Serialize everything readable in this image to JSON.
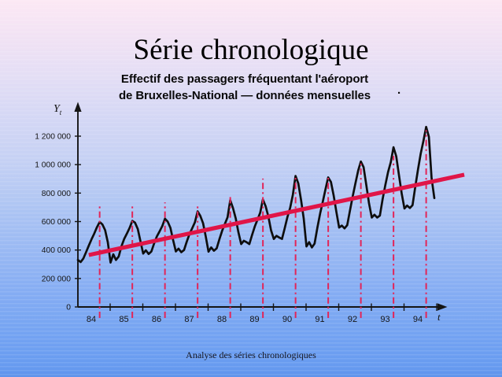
{
  "slide": {
    "title": "Série chronologique",
    "subtitle_line1": "Effectif des passagers fréquentant l'aéroport",
    "subtitle_line2": "de Bruxelles-National — données mensuelles",
    "stray_mark": ".",
    "footer": "Analyse des séries chronologiques"
  },
  "colors": {
    "background_top": "#fce8f4",
    "background_bottom": "#679bf0",
    "curve": "#0e0e0e",
    "trend_line": "#e01548",
    "peak_marker": "#e22558",
    "axis": "#151515"
  },
  "chart_data": {
    "type": "line",
    "title": "Effectif des passagers fréquentant l'aéroport de Bruxelles-National — données mensuelles",
    "unit": "passengers per month",
    "values_scale": 1000,
    "grid": "off",
    "y_axis": {
      "symbol": "Y",
      "symbol_sub": "t",
      "tick_labels": [
        "1 200 000",
        "1 000 000",
        "800 000",
        "600 000",
        "400 000",
        "200 000",
        "0"
      ],
      "tick_values_thousands": [
        1200,
        1000,
        800,
        600,
        400,
        200,
        0
      ],
      "range_thousands": [
        0,
        1300
      ]
    },
    "x_axis": {
      "symbol": "t",
      "year_labels": [
        "84",
        "85",
        "86",
        "87",
        "88",
        "89",
        "90",
        "91",
        "92",
        "93",
        "94"
      ]
    },
    "series_start": "Nov 1983",
    "frequency": "monthly",
    "monthly_values_thousands": [
      330,
      316,
      340,
      385,
      430,
      475,
      515,
      560,
      597,
      580,
      540,
      455,
      312,
      370,
      330,
      355,
      425,
      478,
      515,
      555,
      605,
      592,
      548,
      462,
      375,
      398,
      372,
      390,
      445,
      495,
      530,
      568,
      620,
      600,
      556,
      470,
      390,
      410,
      385,
      400,
      458,
      512,
      552,
      595,
      672,
      640,
      588,
      495,
      388,
      418,
      395,
      412,
      475,
      535,
      582,
      630,
      750,
      695,
      622,
      525,
      442,
      465,
      455,
      442,
      505,
      565,
      612,
      662,
      755,
      708,
      635,
      538,
      478,
      500,
      488,
      478,
      552,
      632,
      695,
      788,
      920,
      868,
      752,
      622,
      425,
      455,
      418,
      445,
      555,
      655,
      738,
      828,
      910,
      878,
      782,
      668,
      558,
      572,
      552,
      575,
      678,
      778,
      868,
      958,
      1022,
      982,
      858,
      728,
      628,
      648,
      628,
      642,
      758,
      858,
      948,
      1018,
      1122,
      1058,
      928,
      798,
      692,
      712,
      695,
      715,
      845,
      968,
      1078,
      1168,
      1265,
      1195,
      905,
      765
    ],
    "trend_line": {
      "start": {
        "month_index": 4,
        "value_thousands": 365
      },
      "end": {
        "month_index": 142,
        "value_thousands": 929
      }
    },
    "peak_markers": {
      "description": "red dash-dot vertical lines at each July peak",
      "first_month_index": 8,
      "step_months": 12,
      "top_values_thousands": [
        720,
        712,
        735,
        706,
        792,
        902,
        916,
        926,
        1030,
        1062,
        1242
      ]
    }
  }
}
